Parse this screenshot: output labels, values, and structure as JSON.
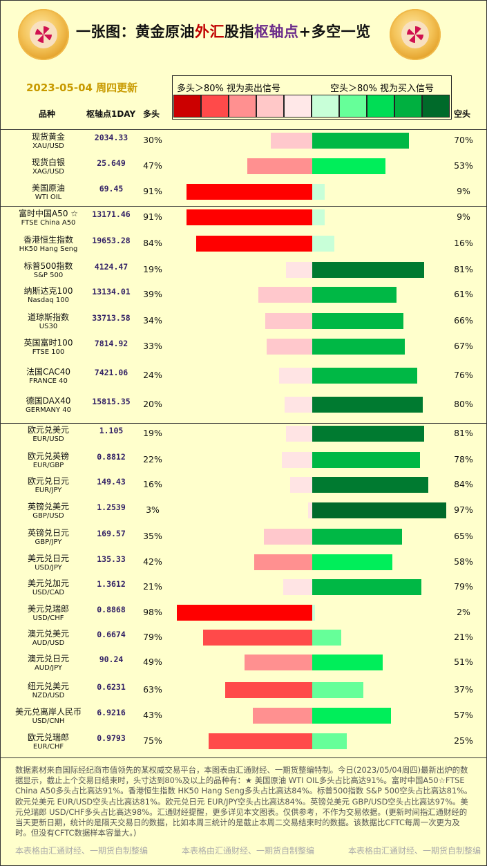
{
  "header": {
    "title_parts": [
      {
        "text": "一张图：黄金原油",
        "color": "#111111"
      },
      {
        "text": "外汇",
        "color": "#c00000"
      },
      {
        "text": "股指",
        "color": "#111111"
      },
      {
        "text": "枢轴点",
        "color": "#6a2a8a"
      },
      {
        "text": "+多空一览",
        "color": "#111111"
      }
    ],
    "date_label": "2023-05-04 周四更新",
    "col_name": "品种",
    "col_pivot": "枢轴点1DAY",
    "col_long": "多头",
    "col_short": "空头"
  },
  "legend": {
    "long_text": "多头＞80% 视为卖出信号",
    "short_text": "空头＞80% 视为买入信号",
    "swatches": [
      "#cc0000",
      "#ff4a4a",
      "#ff9090",
      "#ffc8c8",
      "#ffe8e8",
      "#c8ffd8",
      "#66ff99",
      "#00dd55",
      "#00b040",
      "#006a2a"
    ]
  },
  "chart_data": {
    "type": "bar",
    "categories": [
      "现货黄金 XAU/USD",
      "现货白银 XAG/USD",
      "美国原油 WTI OIL",
      "富时中国A50 ☆ FTSE China A50",
      "香港恒生指数 HK50 Hang Seng",
      "标普500指数 S&P 500",
      "纳斯达克100 Nasdaq 100",
      "道琼斯指数 US30",
      "英国富时100 FTSE 100",
      "法国CAC40 FRANCE 40",
      "德国DAX40 GERMANY 40",
      "欧元兑美元 EUR/USD",
      "欧元兑英镑 EUR/GBP",
      "欧元兑日元 EUR/JPY",
      "英镑兑美元 GBP/USD",
      "英镑兑日元 GBP/JPY",
      "美元兑日元 USD/JPY",
      "美元兑加元 USD/CAD",
      "美元兑瑞郎 USD/CHF",
      "澳元兑美元 AUD/USD",
      "澳元兑日元 AUD/JPY",
      "纽元兑美元 NZD/USD",
      "美元兑离岸人民币 USD/CNH",
      "欧元兑瑞郎 EUR/CHF"
    ],
    "series": [
      {
        "name": "多头",
        "values": [
          30,
          47,
          91,
          91,
          84,
          19,
          39,
          34,
          33,
          24,
          20,
          19,
          22,
          16,
          3,
          35,
          42,
          21,
          98,
          79,
          49,
          63,
          43,
          75
        ]
      },
      {
        "name": "空头",
        "values": [
          70,
          53,
          9,
          9,
          16,
          81,
          61,
          66,
          67,
          76,
          80,
          81,
          78,
          84,
          97,
          65,
          58,
          79,
          2,
          21,
          51,
          37,
          57,
          25
        ]
      }
    ],
    "ylim": [
      0,
      100
    ]
  },
  "rows": [
    {
      "name": "现货黄金",
      "code": "XAU/USD",
      "pivot": "2034.33",
      "long": "30%",
      "short": "70%"
    },
    {
      "name": "现货白银",
      "code": "XAG/USD",
      "pivot": "25.649",
      "long": "47%",
      "short": "53%"
    },
    {
      "name": "美国原油",
      "code": "WTI OIL",
      "pivot": "69.45",
      "long": "91%",
      "short": "9%"
    },
    {
      "name": "富时中国A50 ☆",
      "code": "FTSE China A50",
      "pivot": "13171.46",
      "long": "91%",
      "short": "9%"
    },
    {
      "name": "香港恒生指数",
      "code": "HK50 Hang Seng",
      "pivot": "19653.28",
      "long": "84%",
      "short": "16%"
    },
    {
      "name": "标普500指数",
      "code": "S&P 500",
      "pivot": "4124.47",
      "long": "19%",
      "short": "81%"
    },
    {
      "name": "纳斯达克100",
      "code": "Nasdaq 100",
      "pivot": "13134.01",
      "long": "39%",
      "short": "61%"
    },
    {
      "name": "道琼斯指数",
      "code": "US30",
      "pivot": "33713.58",
      "long": "34%",
      "short": "66%"
    },
    {
      "name": "英国富时100",
      "code": "FTSE 100",
      "pivot": "7814.92",
      "long": "33%",
      "short": "67%"
    },
    {
      "name": "法国CAC40",
      "code": "FRANCE 40",
      "pivot": "7421.06",
      "long": "24%",
      "short": "76%"
    },
    {
      "name": "德国DAX40",
      "code": "GERMANY 40",
      "pivot": "15815.35",
      "long": "20%",
      "short": "80%"
    },
    {
      "name": "欧元兑美元",
      "code": "EUR/USD",
      "pivot": "1.105",
      "long": "19%",
      "short": "81%"
    },
    {
      "name": "欧元兑英镑",
      "code": "EUR/GBP",
      "pivot": "0.8812",
      "long": "22%",
      "short": "78%"
    },
    {
      "name": "欧元兑日元",
      "code": "EUR/JPY",
      "pivot": "149.43",
      "long": "16%",
      "short": "84%"
    },
    {
      "name": "英镑兑美元",
      "code": "GBP/USD",
      "pivot": "1.2539",
      "long": "3%",
      "short": "97%"
    },
    {
      "name": "英镑兑日元",
      "code": "GBP/JPY",
      "pivot": "169.57",
      "long": "35%",
      "short": "65%"
    },
    {
      "name": "美元兑日元",
      "code": "USD/JPY",
      "pivot": "135.33",
      "long": "42%",
      "short": "58%"
    },
    {
      "name": "美元兑加元",
      "code": "USD/CAD",
      "pivot": "1.3612",
      "long": "21%",
      "short": "79%"
    },
    {
      "name": "美元兑瑞郎",
      "code": "USD/CHF",
      "pivot": "0.8868",
      "long": "98%",
      "short": "2%"
    },
    {
      "name": "澳元兑美元",
      "code": "AUD/USD",
      "pivot": "0.6674",
      "long": "79%",
      "short": "21%"
    },
    {
      "name": "澳元兑日元",
      "code": "AUD/JPY",
      "pivot": "90.24",
      "long": "49%",
      "short": "51%"
    },
    {
      "name": "纽元兑美元",
      "code": "NZD/USD",
      "pivot": "0.6231",
      "long": "63%",
      "short": "37%"
    },
    {
      "name": "美元兑离岸人民币",
      "code": "USD/CNH",
      "pivot": "6.9216",
      "long": "43%",
      "short": "57%"
    },
    {
      "name": "欧元兑瑞郎",
      "code": "EUR/CHF",
      "pivot": "0.9793",
      "long": "75%",
      "short": "25%"
    }
  ],
  "notes": "数据素材来自国际经纪商市值领先的某权威交易平台，本图表由汇通财经、一期货整编特制。今日(2023/05/04周四)最新出炉的数据显示，截止上个交易日结束时，头寸达到80%及以上的品种有：★ 美国原油 WTI OIL多头占比高达91%。富时中国A50☆FTSE China A50多头占比高达91%。香港恒生指数 HK50 Hang Seng多头占比高达84%。标普500指数 S&P 500空头占比高达81%。欧元兑美元 EUR/USD空头占比高达81%。欧元兑日元 EUR/JPY空头占比高达84%。英镑兑美元 GBP/USD空头占比高达97%。美元兑瑞郎 USD/CHF多头占比高达98%。汇通财经提醒，更多详见本文图表。仅供参考，不作为交易依据。(更新时间指汇通财经的当天更新日期，统计的是隔天交易日的数据，比如本周三统计的是截止本周二交易结束时的数据。该数据比CFTC每周一次更为及时。但没有CFTC数据样本容量大。)",
  "footer": [
    "本表格由汇通财经、一期货自制整编",
    "本表格由汇通财经、一期货自制整编",
    "本表格由汇通财经、一期货自制整编"
  ]
}
